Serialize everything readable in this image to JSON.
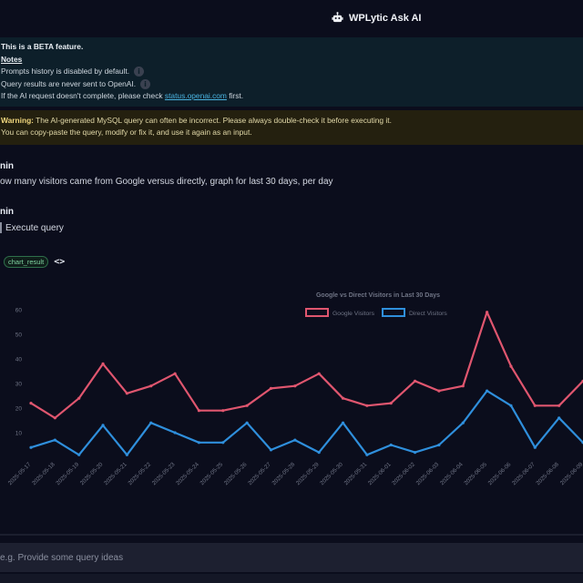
{
  "header": {
    "title": "WPLytic Ask AI"
  },
  "info": {
    "beta": "This is a BETA feature.",
    "notes_label": "Notes",
    "line1": "Prompts history is disabled by default.",
    "line2": "Query results are never sent to OpenAI.",
    "line3_prefix": "If the AI request doesn't complete, please check ",
    "line3_link": "status.openai.com",
    "line3_suffix": " first."
  },
  "warning": {
    "label": "Warning:",
    "text1": " The AI-generated MySQL query can often be incorrect. Please always double-check it before executing it.",
    "text2": "You can copy-paste the query, modify or fix it, and use it again as an input."
  },
  "conversation": {
    "user1": "nin",
    "message": "ow many visitors came from Google versus directly, graph for last 30 days, per day",
    "user2": "nin",
    "execute_label": "Execute query",
    "result_badge": "chart_result",
    "code_icon": "<>"
  },
  "input": {
    "placeholder": "e.g. Provide some query ideas",
    "value": ""
  },
  "colors": {
    "google": "#e0566f",
    "direct": "#2f8fdc",
    "background": "#0b0d1c"
  },
  "chart_data": {
    "type": "line",
    "title": "Google vs Direct Visitors in Last 30 Days",
    "ylim": [
      0,
      60
    ],
    "yticks": [
      10,
      20,
      30,
      40,
      50,
      60
    ],
    "legend_position": "top-center",
    "grid": false,
    "x": [
      "2025-05-17",
      "2025-05-18",
      "2025-05-19",
      "2025-05-20",
      "2025-05-21",
      "2025-05-22",
      "2025-05-23",
      "2025-05-24",
      "2025-05-25",
      "2025-05-26",
      "2025-05-27",
      "2025-05-28",
      "2025-05-29",
      "2025-05-30",
      "2025-05-31",
      "2025-06-01",
      "2025-06-02",
      "2025-06-03",
      "2025-06-04",
      "2025-06-05",
      "2025-06-06",
      "2025-06-07",
      "2025-06-08",
      "2025-06-09"
    ],
    "series": [
      {
        "name": "Google Visitors",
        "color": "#e0566f",
        "values": [
          22,
          16,
          24,
          38,
          26,
          29,
          34,
          19,
          19,
          21,
          28,
          29,
          34,
          24,
          21,
          22,
          31,
          27,
          29,
          59,
          37,
          21,
          21,
          31
        ]
      },
      {
        "name": "Direct Visitors",
        "color": "#2f8fdc",
        "values": [
          4,
          7,
          1,
          13,
          1,
          14,
          10,
          6,
          6,
          14,
          3,
          7,
          2,
          14,
          1,
          5,
          2,
          5,
          14,
          27,
          21,
          4,
          16,
          6
        ]
      }
    ]
  }
}
